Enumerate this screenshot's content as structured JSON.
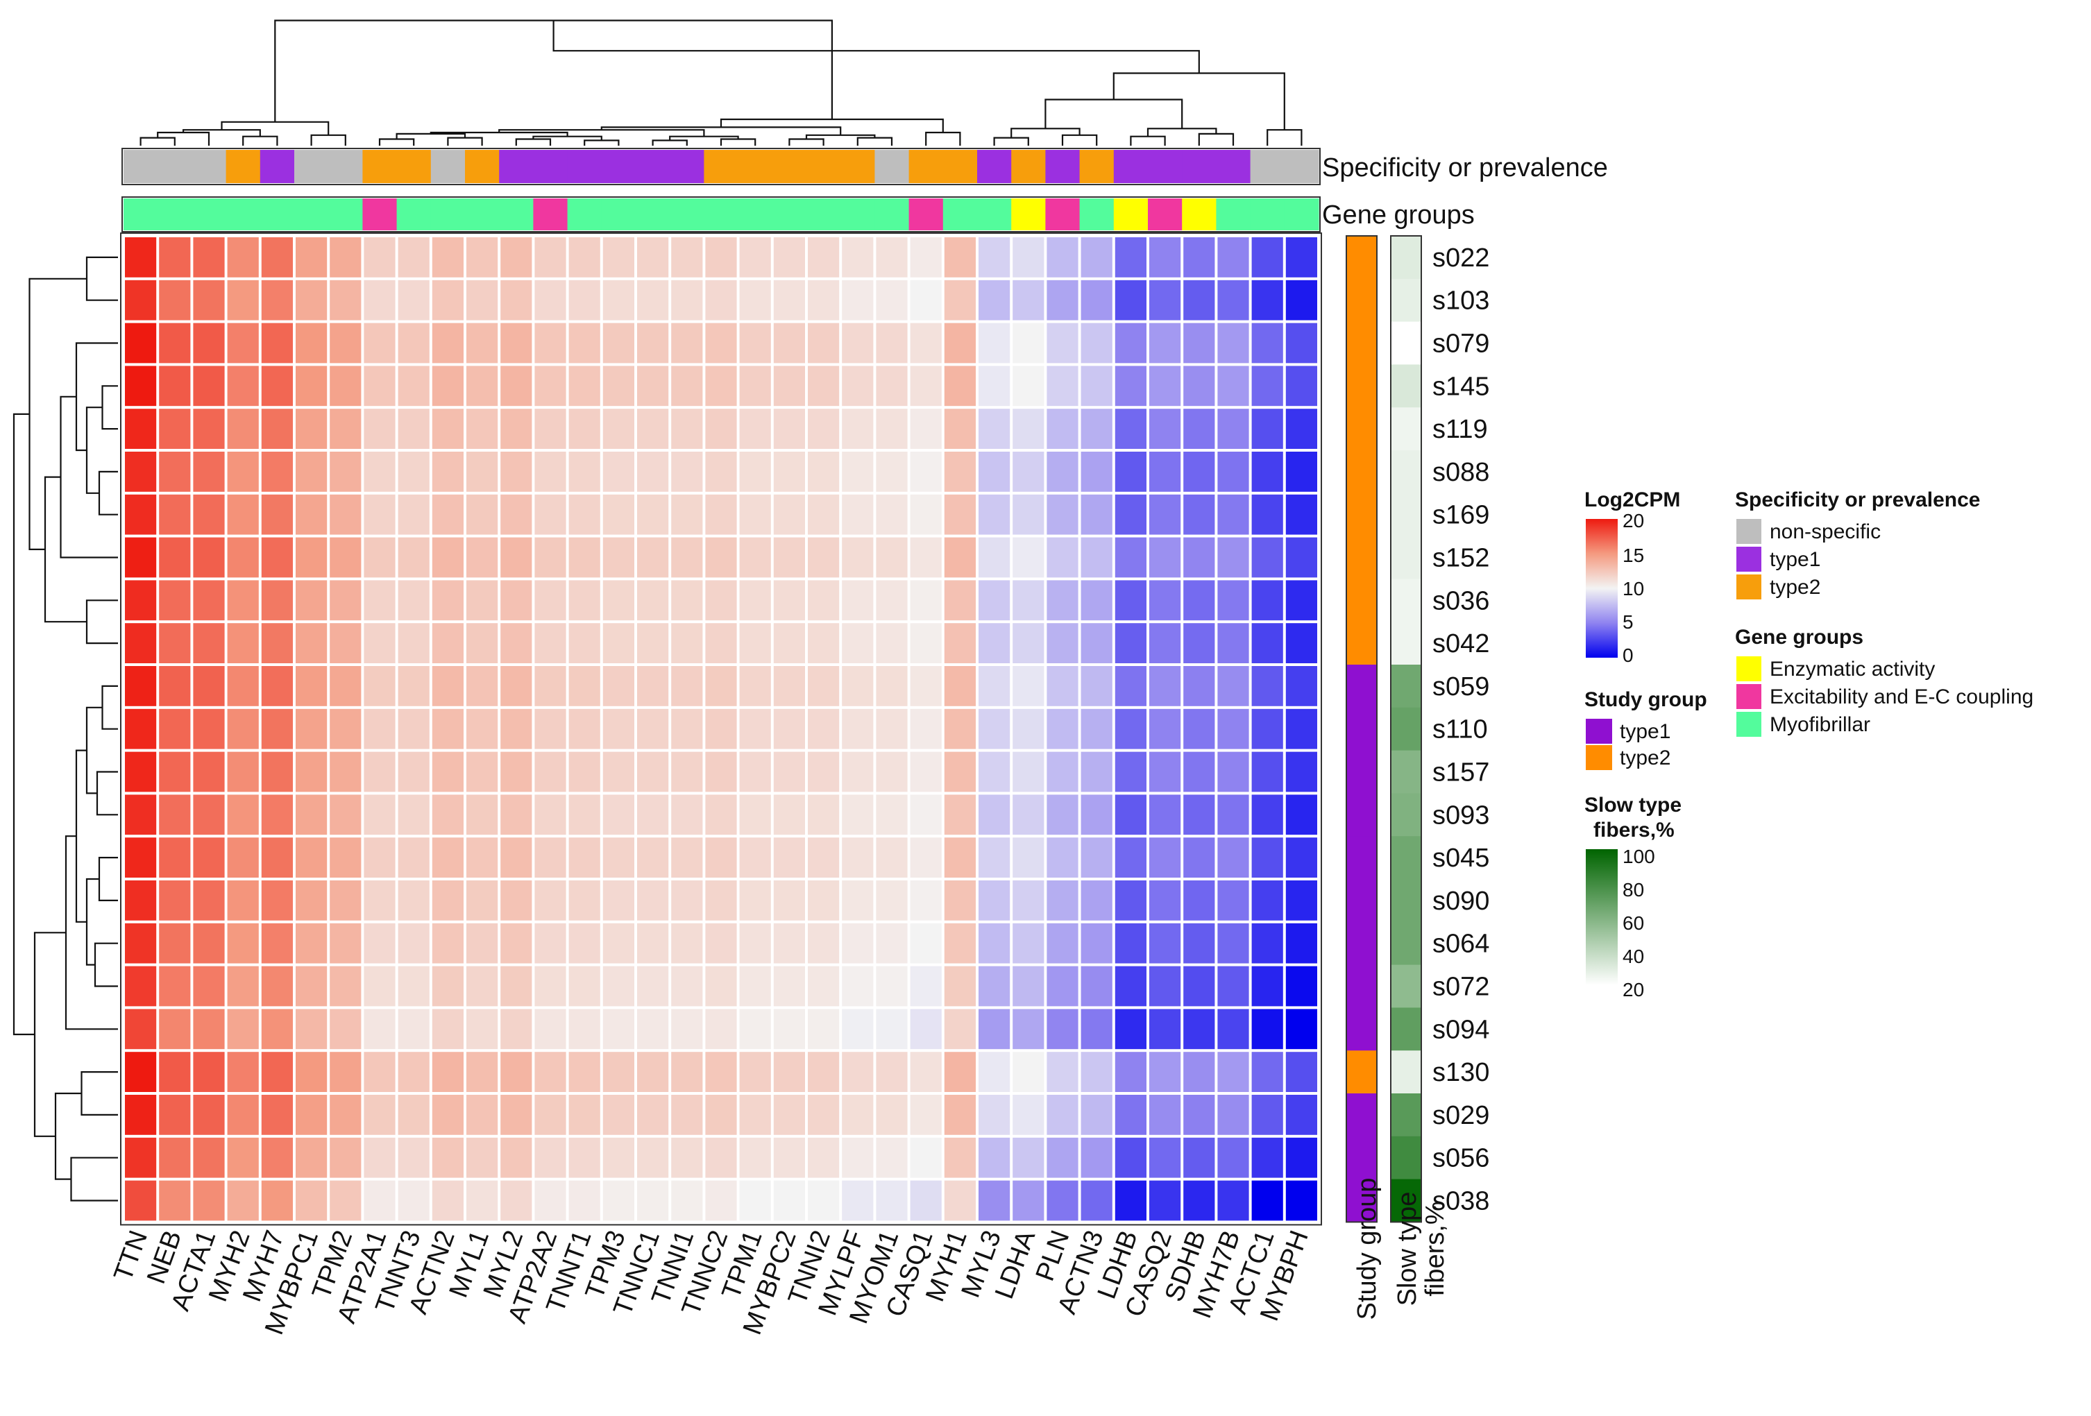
{
  "chart_data": {
    "type": "heatmap",
    "title": "",
    "genes": [
      "TTN",
      "NEB",
      "ACTA1",
      "MYH2",
      "MYH7",
      "MYBPC1",
      "TPM2",
      "ATP2A1",
      "TNNT3",
      "ACTN2",
      "MYL1",
      "MYL2",
      "ATP2A2",
      "TNNT1",
      "TPM3",
      "TNNC1",
      "TNNI1",
      "TNNC2",
      "TPM1",
      "MYBPC2",
      "TNNI2",
      "MYLPF",
      "MYOM1",
      "CASQ1",
      "MYH1",
      "MYL3",
      "LDHA",
      "PLN",
      "ACTN3",
      "LDHB",
      "CASQ2",
      "SDHB",
      "MYH7B",
      "ACTC1",
      "MYBPH"
    ],
    "samples": [
      "s022",
      "s103",
      "s079",
      "s145",
      "s119",
      "s088",
      "s169",
      "s152",
      "s036",
      "s042",
      "s059",
      "s110",
      "s157",
      "s093",
      "s045",
      "s090",
      "s064",
      "s072",
      "s094",
      "s130",
      "s029",
      "s056",
      "s038"
    ],
    "gene_base_log2cpm": [
      19.5,
      17,
      17,
      15.5,
      16.5,
      14.5,
      14,
      12,
      12,
      13,
      12.5,
      13,
      12,
      12,
      11.8,
      11.8,
      11.8,
      12,
      11.5,
      11.5,
      11.5,
      11,
      11,
      10.5,
      13,
      8.5,
      9,
      7.5,
      7,
      4,
      5,
      4.5,
      5,
      3,
      2
    ],
    "sample_offsets": [
      0,
      -0.5,
      0.5,
      0.5,
      0,
      -0.3,
      -0.2,
      0.3,
      -0.2,
      -0.2,
      0.2,
      0,
      0,
      -0.3,
      0,
      -0.3,
      -0.5,
      -0.8,
      -1.2,
      0.5,
      0.2,
      -0.5,
      -1.5
    ],
    "color_scale": {
      "name": "Log2CPM",
      "ticks": [
        20,
        15,
        10,
        5,
        0
      ],
      "stops": [
        {
          "value": 0,
          "color": "#0000ee"
        },
        {
          "value": 5,
          "color": "#8f83f0"
        },
        {
          "value": 10,
          "color": "#f3f3f3"
        },
        {
          "value": 15,
          "color": "#f49a80"
        },
        {
          "value": 20,
          "color": "#ee1a10"
        }
      ]
    },
    "column_annotations": {
      "specificity": {
        "label": "Specificity or prevalence",
        "values": [
          "non-specific",
          "non-specific",
          "non-specific",
          "type2",
          "type1",
          "non-specific",
          "non-specific",
          "type2",
          "type2",
          "non-specific",
          "type2",
          "type1",
          "type1",
          "type1",
          "type1",
          "type1",
          "type1",
          "type2",
          "type2",
          "type2",
          "type2",
          "type2",
          "non-specific",
          "type2",
          "type2",
          "type1",
          "type2",
          "type1",
          "type2",
          "type1",
          "type1",
          "type1",
          "type1",
          "non-specific",
          "non-specific"
        ]
      },
      "gene_groups": {
        "label": "Gene groups",
        "values": [
          "Myofibrillar",
          "Myofibrillar",
          "Myofibrillar",
          "Myofibrillar",
          "Myofibrillar",
          "Myofibrillar",
          "Myofibrillar",
          "Excitability and E-C coupling",
          "Myofibrillar",
          "Myofibrillar",
          "Myofibrillar",
          "Myofibrillar",
          "Excitability and E-C coupling",
          "Myofibrillar",
          "Myofibrillar",
          "Myofibrillar",
          "Myofibrillar",
          "Myofibrillar",
          "Myofibrillar",
          "Myofibrillar",
          "Myofibrillar",
          "Myofibrillar",
          "Myofibrillar",
          "Excitability and E-C coupling",
          "Myofibrillar",
          "Myofibrillar",
          "Enzymatic activity",
          "Excitability and E-C coupling",
          "Myofibrillar",
          "Enzymatic activity",
          "Excitability and E-C coupling",
          "Enzymatic activity",
          "Myofibrillar",
          "Myofibrillar",
          "Myofibrillar"
        ]
      }
    },
    "row_annotations": {
      "study_group": {
        "label": "Study group",
        "values": [
          "type2",
          "type2",
          "type2",
          "type2",
          "type2",
          "type2",
          "type2",
          "type2",
          "type2",
          "type2",
          "type1",
          "type1",
          "type1",
          "type1",
          "type1",
          "type1",
          "type1",
          "type1",
          "type1",
          "type2",
          "type1",
          "type1",
          "type1"
        ]
      },
      "slow_type_fibers": {
        "label": "Slow type fibers,%",
        "values": [
          30,
          28,
          20,
          32,
          25,
          27,
          27,
          27,
          25,
          25,
          65,
          68,
          58,
          60,
          65,
          65,
          65,
          55,
          70,
          28,
          72,
          80,
          98
        ]
      }
    }
  },
  "legends": {
    "log2cpm": {
      "title": "Log2CPM",
      "ticks": [
        "20",
        "15",
        "10",
        "5",
        "0"
      ]
    },
    "specificity": {
      "title": "Specificity or prevalence",
      "items": [
        {
          "label": "non-specific",
          "color": "#bebebe"
        },
        {
          "label": "type1",
          "color": "#9b30e0"
        },
        {
          "label": "type2",
          "color": "#f79e0c"
        }
      ]
    },
    "gene_groups": {
      "title": "Gene groups",
      "items": [
        {
          "label": "Enzymatic activity",
          "color": "#ffff00"
        },
        {
          "label": "Excitability and E-C coupling",
          "color": "#f0379f"
        },
        {
          "label": "Myofibrillar",
          "color": "#53fc9c"
        }
      ]
    },
    "study_group": {
      "title": "Study group",
      "items": [
        {
          "label": "type1",
          "color": "#8f10d0"
        },
        {
          "label": "type2",
          "color": "#ff8c00"
        }
      ]
    },
    "slow_fibers": {
      "title_line1": "Slow type",
      "title_line2": "fibers,%",
      "ticks": [
        "100",
        "80",
        "60",
        "40",
        "20"
      ],
      "color_low": "#ffffff",
      "color_high": "#006400"
    }
  },
  "axis_labels": {
    "study_group": "Study group",
    "slow_line1": "Slow type",
    "slow_line2": "fibers,%"
  }
}
